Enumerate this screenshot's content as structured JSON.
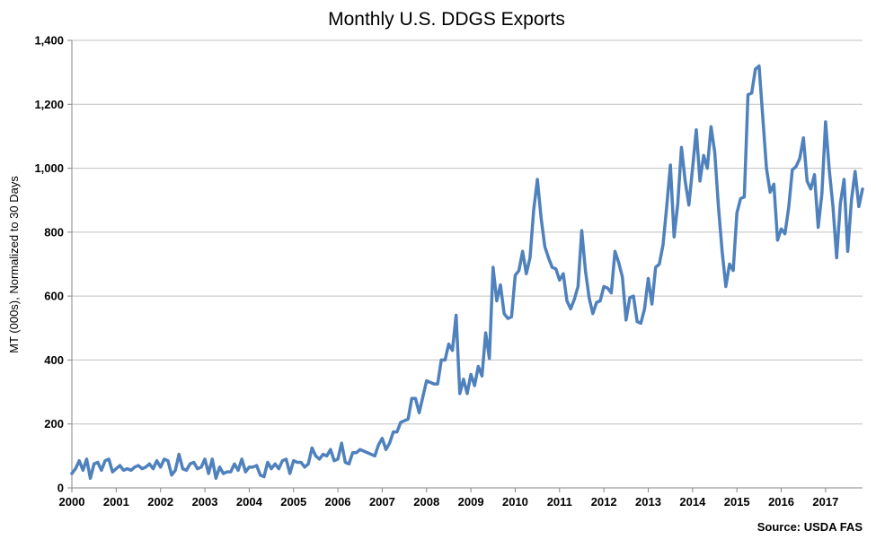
{
  "chart_data": {
    "type": "line",
    "title": "Monthly U.S. DDGS Exports",
    "xlabel": "",
    "ylabel": "MT (000s), Normalized to 30 Days",
    "source": "Source: USDA FAS",
    "ylim": [
      0,
      1400
    ],
    "yticks": [
      "0",
      "200",
      "400",
      "600",
      "800",
      "1,000",
      "1,200",
      "1,400"
    ],
    "ytick_values": [
      0,
      200,
      400,
      600,
      800,
      1000,
      1200,
      1400
    ],
    "xticks": [
      "2000",
      "2001",
      "2002",
      "2003",
      "2004",
      "2005",
      "2006",
      "2007",
      "2008",
      "2009",
      "2010",
      "2011",
      "2012",
      "2013",
      "2014",
      "2015",
      "2016",
      "2017"
    ],
    "x_start": "2000-01",
    "grid": "horizontal",
    "legend": "none",
    "series": [
      {
        "color": "#4f81bd",
        "values": [
          45,
          60,
          85,
          55,
          90,
          30,
          75,
          80,
          55,
          85,
          90,
          50,
          60,
          70,
          55,
          60,
          55,
          65,
          70,
          60,
          65,
          75,
          60,
          85,
          65,
          90,
          85,
          40,
          55,
          105,
          60,
          55,
          75,
          80,
          60,
          65,
          90,
          45,
          90,
          30,
          65,
          45,
          50,
          50,
          75,
          55,
          90,
          50,
          65,
          65,
          70,
          40,
          35,
          80,
          60,
          75,
          60,
          85,
          90,
          45,
          85,
          80,
          80,
          65,
          75,
          125,
          100,
          90,
          105,
          100,
          120,
          85,
          90,
          140,
          80,
          75,
          110,
          110,
          120,
          115,
          110,
          105,
          100,
          135,
          155,
          120,
          140,
          175,
          175,
          205,
          210,
          215,
          280,
          280,
          235,
          285,
          335,
          330,
          325,
          325,
          400,
          400,
          450,
          430,
          540,
          295,
          340,
          295,
          355,
          320,
          380,
          350,
          485,
          405,
          690,
          585,
          635,
          545,
          530,
          535,
          665,
          680,
          740,
          670,
          720,
          870,
          965,
          845,
          755,
          720,
          690,
          685,
          650,
          670,
          585,
          560,
          590,
          630,
          805,
          680,
          595,
          545,
          580,
          585,
          630,
          625,
          610,
          740,
          705,
          660,
          525,
          595,
          600,
          520,
          515,
          560,
          655,
          575,
          690,
          700,
          760,
          880,
          1010,
          785,
          890,
          1065,
          960,
          885,
          1000,
          1120,
          960,
          1040,
          1000,
          1130,
          1050,
          880,
          740,
          630,
          700,
          680,
          860,
          905,
          910,
          1230,
          1235,
          1310,
          1320,
          1160,
          1000,
          925,
          950,
          775,
          810,
          795,
          875,
          995,
          1005,
          1030,
          1095,
          960,
          935,
          980,
          815,
          920,
          1145,
          995,
          880,
          720,
          890,
          965,
          740,
          900,
          990,
          880,
          935
        ]
      }
    ]
  }
}
